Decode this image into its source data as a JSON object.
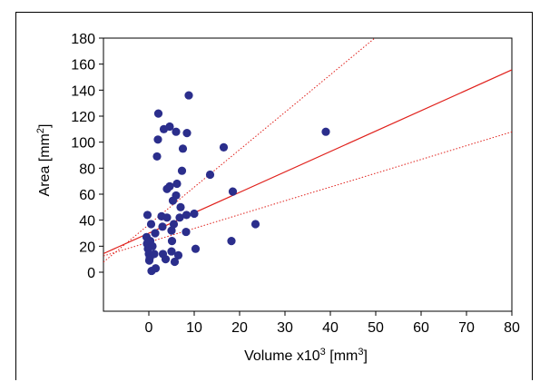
{
  "chart_data": {
    "type": "scatter",
    "title": "",
    "xlabel": "Volume x10",
    "xlabel_sup": "3",
    "xlabel_unit": " [mm",
    "xlabel_unit_sup": "3",
    "xlabel_close": "]",
    "ylabel": "Area [mm",
    "ylabel_sup": "2",
    "ylabel_close": "]",
    "xlim": [
      -10,
      80
    ],
    "ylim": [
      -30,
      180
    ],
    "xticks": [
      0,
      10,
      20,
      30,
      40,
      50,
      60,
      70,
      80
    ],
    "yticks": [
      0,
      20,
      40,
      60,
      80,
      100,
      120,
      140,
      160,
      180
    ],
    "grid": false,
    "colors": {
      "points": "#2b2e8c",
      "fit": "#e0201b",
      "ci": "#e0201b"
    },
    "points": [
      [
        -0.3,
        44
      ],
      [
        -0.5,
        27
      ],
      [
        -0.4,
        22
      ],
      [
        -0.2,
        18
      ],
      [
        0.0,
        14
      ],
      [
        0.2,
        11
      ],
      [
        0.1,
        9
      ],
      [
        0.3,
        24
      ],
      [
        0.5,
        37
      ],
      [
        0.8,
        20
      ],
      [
        0.6,
        1
      ],
      [
        1.2,
        14
      ],
      [
        1.5,
        3
      ],
      [
        1.4,
        30
      ],
      [
        1.8,
        89
      ],
      [
        2.0,
        102
      ],
      [
        2.1,
        122
      ],
      [
        2.8,
        43
      ],
      [
        3.0,
        35
      ],
      [
        3.1,
        14
      ],
      [
        3.3,
        110
      ],
      [
        3.7,
        10
      ],
      [
        4.0,
        42
      ],
      [
        4.0,
        64
      ],
      [
        4.6,
        66
      ],
      [
        4.6,
        112
      ],
      [
        5.0,
        16
      ],
      [
        5.0,
        32
      ],
      [
        5.1,
        24
      ],
      [
        5.3,
        55
      ],
      [
        5.5,
        37
      ],
      [
        5.7,
        8
      ],
      [
        6.0,
        59
      ],
      [
        6.0,
        108
      ],
      [
        6.2,
        68
      ],
      [
        6.5,
        13
      ],
      [
        6.8,
        42
      ],
      [
        7.0,
        50
      ],
      [
        7.3,
        78
      ],
      [
        7.5,
        95
      ],
      [
        8.2,
        31
      ],
      [
        8.3,
        44
      ],
      [
        8.4,
        107
      ],
      [
        8.8,
        136
      ],
      [
        10.0,
        45
      ],
      [
        10.3,
        18
      ],
      [
        13.5,
        75
      ],
      [
        16.5,
        96
      ],
      [
        18.2,
        24
      ],
      [
        18.5,
        62
      ],
      [
        23.5,
        37
      ],
      [
        39.0,
        108
      ]
    ],
    "fit_line": {
      "intercept": 30,
      "slope": 1.57
    },
    "ci_upper": {
      "intercept": 36.6,
      "slope": 2.88
    },
    "ci_lower": {
      "intercept": 23.1,
      "slope": 1.06
    }
  }
}
